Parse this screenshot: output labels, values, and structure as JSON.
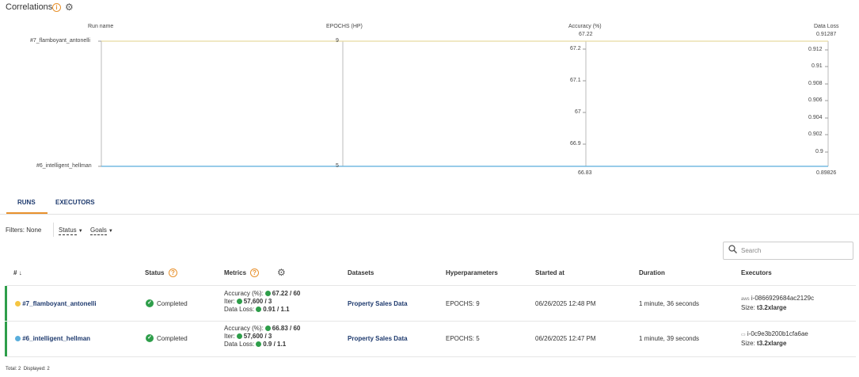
{
  "header": {
    "title": "Correlations",
    "info_icon": "info-icon",
    "settings_icon": "gear-icon"
  },
  "correlation_plot": {
    "axes": [
      {
        "name": "Run name",
        "ticks": [
          "#7_flamboyant_antonelli",
          "#6_intelligent_hellman"
        ]
      },
      {
        "name": "EPOCHS (HP)",
        "ticks": [
          "9",
          "5"
        ]
      },
      {
        "name": "Accuracy (%)",
        "max_label": "67.22",
        "min_label": "66.83",
        "ticks": [
          "67.2",
          "67.1",
          "67",
          "66.9"
        ]
      },
      {
        "name": "Data Loss",
        "max_label": "0.91287",
        "min_label": "0.89826",
        "ticks": [
          "0.912",
          "0.91",
          "0.908",
          "0.906",
          "0.904",
          "0.902",
          "0.9"
        ]
      }
    ],
    "line_colors": {
      "run7": "#e8d9a0",
      "run6": "#5aaedc"
    }
  },
  "tabs": {
    "runs": "RUNS",
    "executors": "EXECUTORS",
    "active": "RUNS",
    "accent_color": "#e8912d"
  },
  "filters": {
    "label": "Filters:",
    "value": "None",
    "status": "Status",
    "goals": "Goals"
  },
  "search": {
    "placeholder": "Search"
  },
  "table": {
    "columns": {
      "num": "#",
      "status": "Status",
      "metrics": "Metrics",
      "datasets": "Datasets",
      "hyperparameters": "Hyperparameters",
      "started": "Started at",
      "duration": "Duration",
      "executors": "Executors"
    },
    "rows": [
      {
        "name": "#7_flamboyant_antonelli",
        "dot_color": "#f5c542",
        "status": "Completed",
        "metrics": [
          {
            "label": "Accuracy (%):",
            "value": "67.22 / 60"
          },
          {
            "label": "Iter:",
            "value": "57,600 / 3"
          },
          {
            "label": "Data Loss:",
            "value": "0.91 / 1.1"
          }
        ],
        "dataset": "Property Sales Data",
        "hyperparameters": "EPOCHS: 9",
        "started_at": "06/26/2025 12:48 PM",
        "duration": "1 minute, 36 seconds",
        "executor_id": "i-0866929684ac2129c",
        "executor_size_label": "Size:",
        "executor_size": "t3.2xlarge"
      },
      {
        "name": "#6_intelligent_hellman",
        "dot_color": "#5aaedc",
        "status": "Completed",
        "metrics": [
          {
            "label": "Accuracy (%):",
            "value": "66.83 / 60"
          },
          {
            "label": "Iter:",
            "value": "57,600 / 3"
          },
          {
            "label": "Data Loss:",
            "value": "0.9 / 1.1"
          }
        ],
        "dataset": "Property Sales Data",
        "hyperparameters": "EPOCHS: 5",
        "started_at": "06/26/2025 12:47 PM",
        "duration": "1 minute, 39 seconds",
        "executor_id": "i-0c9e3b200b1cfa6ae",
        "executor_size_label": "Size:",
        "executor_size": "t3.2xlarge"
      }
    ]
  },
  "footer": {
    "total_label": "Total:",
    "total": "2",
    "displayed_label": "Displayed:",
    "displayed": "2"
  },
  "colors": {
    "status_green": "#2e9e4a",
    "link_blue": "#1e3a6e",
    "accent_orange": "#e8912d"
  }
}
